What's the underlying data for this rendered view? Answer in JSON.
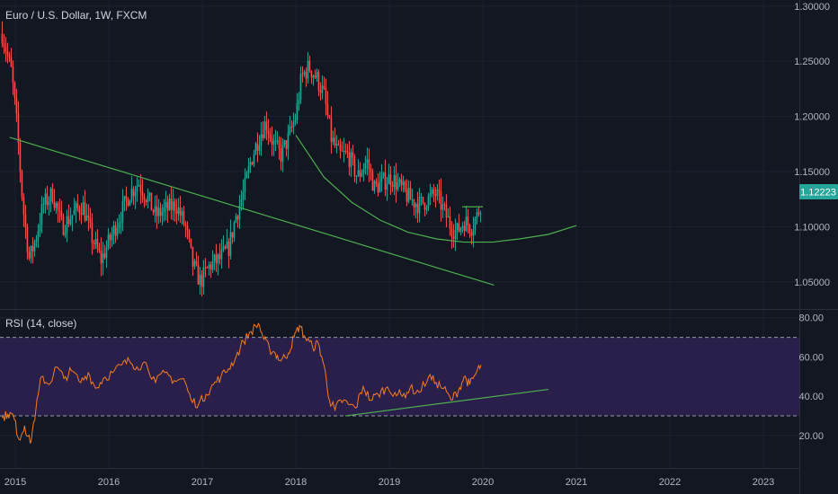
{
  "colors": {
    "background": "#131722",
    "grid": "#1e222d",
    "up": "#26a69a",
    "down": "#ef5350",
    "trendline": "#4caf50",
    "rsi_line": "#f57c1f",
    "rsi_band": "#2a1f4a",
    "price_tag": "#26a69a"
  },
  "chart_data": [
    {
      "type": "candlestick",
      "title": "Euro / U.S. Dollar, 1W, FXCM",
      "interval": "1W",
      "x_ticks": [
        "2015",
        "2016",
        "2017",
        "2018",
        "2019",
        "2020",
        "2021",
        "2022",
        "2023"
      ],
      "y_ticks": [
        "1.30000",
        "1.25000",
        "1.20000",
        "1.15000",
        "1.10000",
        "1.05000"
      ],
      "ylim": [
        1.0254,
        1.3055
      ],
      "last_price": "1.12223",
      "price_path": [
        [
          2014.86,
          1.275
        ],
        [
          2014.96,
          1.24
        ],
        [
          2015.02,
          1.19
        ],
        [
          2015.08,
          1.12
        ],
        [
          2015.15,
          1.07
        ],
        [
          2015.22,
          1.09
        ],
        [
          2015.3,
          1.12
        ],
        [
          2015.4,
          1.13
        ],
        [
          2015.5,
          1.1
        ],
        [
          2015.6,
          1.11
        ],
        [
          2015.72,
          1.12
        ],
        [
          2015.82,
          1.09
        ],
        [
          2015.92,
          1.07
        ],
        [
          2016.02,
          1.09
        ],
        [
          2016.12,
          1.11
        ],
        [
          2016.22,
          1.13
        ],
        [
          2016.32,
          1.14
        ],
        [
          2016.42,
          1.125
        ],
        [
          2016.5,
          1.11
        ],
        [
          2016.6,
          1.115
        ],
        [
          2016.72,
          1.12
        ],
        [
          2016.82,
          1.1
        ],
        [
          2016.9,
          1.065
        ],
        [
          2016.98,
          1.05
        ],
        [
          2017.08,
          1.065
        ],
        [
          2017.18,
          1.07
        ],
        [
          2017.28,
          1.08
        ],
        [
          2017.36,
          1.11
        ],
        [
          2017.44,
          1.13
        ],
        [
          2017.52,
          1.16
        ],
        [
          2017.6,
          1.18
        ],
        [
          2017.68,
          1.195
        ],
        [
          2017.76,
          1.175
        ],
        [
          2017.84,
          1.165
        ],
        [
          2017.92,
          1.18
        ],
        [
          2018.0,
          1.2
        ],
        [
          2018.06,
          1.235
        ],
        [
          2018.14,
          1.245
        ],
        [
          2018.22,
          1.235
        ],
        [
          2018.3,
          1.22
        ],
        [
          2018.38,
          1.18
        ],
        [
          2018.46,
          1.165
        ],
        [
          2018.56,
          1.165
        ],
        [
          2018.66,
          1.145
        ],
        [
          2018.76,
          1.16
        ],
        [
          2018.84,
          1.135
        ],
        [
          2018.92,
          1.14
        ],
        [
          2019.02,
          1.145
        ],
        [
          2019.12,
          1.135
        ],
        [
          2019.22,
          1.125
        ],
        [
          2019.32,
          1.12
        ],
        [
          2019.42,
          1.125
        ],
        [
          2019.5,
          1.13
        ],
        [
          2019.58,
          1.115
        ],
        [
          2019.66,
          1.1
        ],
        [
          2019.72,
          1.095
        ],
        [
          2019.8,
          1.105
        ],
        [
          2019.88,
          1.1
        ],
        [
          2019.94,
          1.11
        ],
        [
          2019.98,
          1.1222
        ]
      ],
      "trendlines": [
        {
          "from": [
            2014.94,
            1.181
          ],
          "to": [
            2020.12,
            1.047
          ]
        },
        {
          "from": [
            2019.78,
            1.118
          ],
          "to": [
            2020.0,
            1.118
          ]
        }
      ],
      "curve": [
        [
          2018.0,
          1.183
        ],
        [
          2018.3,
          1.145
        ],
        [
          2018.6,
          1.122
        ],
        [
          2018.9,
          1.106
        ],
        [
          2019.2,
          1.095
        ],
        [
          2019.5,
          1.089
        ],
        [
          2019.8,
          1.086
        ],
        [
          2020.1,
          1.086
        ],
        [
          2020.4,
          1.089
        ],
        [
          2020.7,
          1.093
        ],
        [
          2021.0,
          1.101
        ]
      ]
    },
    {
      "type": "line",
      "title": "RSI (14, close)",
      "y_ticks": [
        "80.00",
        "60.00",
        "40.00",
        "20.00"
      ],
      "ylim": [
        3.5,
        84
      ],
      "levels": [
        70,
        30
      ],
      "series": [
        {
          "values": [
            [
              2014.86,
              29
            ],
            [
              2014.92,
              31
            ],
            [
              2014.98,
              30
            ],
            [
              2015.04,
              18
            ],
            [
              2015.1,
              25
            ],
            [
              2015.16,
              16
            ],
            [
              2015.22,
              33
            ],
            [
              2015.28,
              50
            ],
            [
              2015.36,
              46
            ],
            [
              2015.44,
              55
            ],
            [
              2015.52,
              49
            ],
            [
              2015.6,
              53
            ],
            [
              2015.7,
              47
            ],
            [
              2015.78,
              52
            ],
            [
              2015.86,
              44
            ],
            [
              2015.94,
              49
            ],
            [
              2016.04,
              52
            ],
            [
              2016.14,
              56
            ],
            [
              2016.22,
              58
            ],
            [
              2016.3,
              55
            ],
            [
              2016.4,
              57
            ],
            [
              2016.5,
              47
            ],
            [
              2016.6,
              52
            ],
            [
              2016.7,
              48
            ],
            [
              2016.8,
              49
            ],
            [
              2016.88,
              38
            ],
            [
              2016.96,
              36
            ],
            [
              2017.04,
              41
            ],
            [
              2017.12,
              46
            ],
            [
              2017.2,
              50
            ],
            [
              2017.28,
              54
            ],
            [
              2017.36,
              60
            ],
            [
              2017.44,
              68
            ],
            [
              2017.52,
              73
            ],
            [
              2017.6,
              77
            ],
            [
              2017.66,
              69
            ],
            [
              2017.72,
              64
            ],
            [
              2017.78,
              62
            ],
            [
              2017.84,
              58
            ],
            [
              2017.92,
              62
            ],
            [
              2017.98,
              70
            ],
            [
              2018.04,
              76
            ],
            [
              2018.1,
              70
            ],
            [
              2018.18,
              65
            ],
            [
              2018.24,
              67
            ],
            [
              2018.3,
              56
            ],
            [
              2018.36,
              38
            ],
            [
              2018.42,
              33
            ],
            [
              2018.48,
              38
            ],
            [
              2018.56,
              36
            ],
            [
              2018.64,
              34
            ],
            [
              2018.72,
              45
            ],
            [
              2018.8,
              38
            ],
            [
              2018.88,
              41
            ],
            [
              2018.96,
              44
            ],
            [
              2019.06,
              42
            ],
            [
              2019.14,
              40
            ],
            [
              2019.22,
              44
            ],
            [
              2019.32,
              42
            ],
            [
              2019.42,
              50
            ],
            [
              2019.5,
              47
            ],
            [
              2019.58,
              44
            ],
            [
              2019.66,
              38
            ],
            [
              2019.74,
              43
            ],
            [
              2019.8,
              50
            ],
            [
              2019.86,
              46
            ],
            [
              2019.92,
              51
            ],
            [
              2019.98,
              56
            ]
          ]
        }
      ],
      "trendlines": [
        {
          "from": [
            2018.53,
            30
          ],
          "to": [
            2020.7,
            43.5
          ]
        }
      ]
    }
  ]
}
